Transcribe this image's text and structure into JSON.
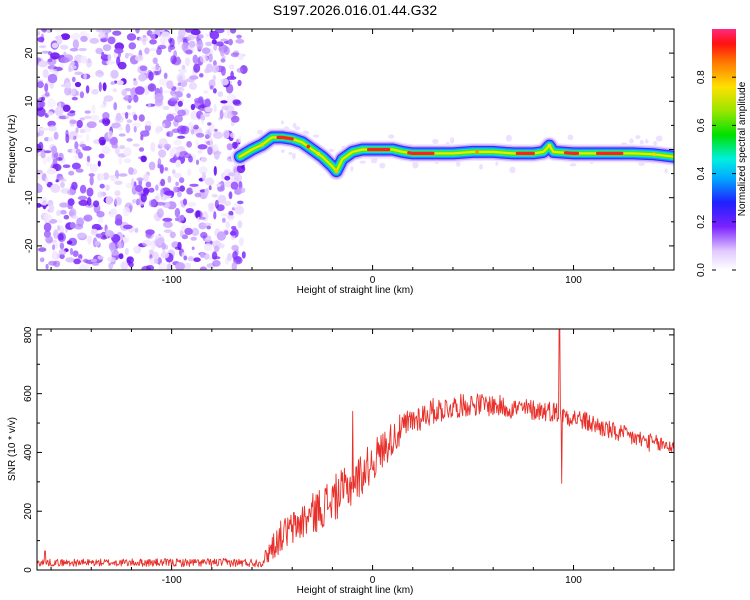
{
  "title": "S197.2026.016.01.44.G32",
  "chart_data": [
    {
      "type": "heatmap",
      "name": "spectrogram",
      "xlabel": "Height of straight line (km)",
      "ylabel": "Frequency (Hz)",
      "xlim": [
        -167,
        150
      ],
      "ylim": [
        -25,
        25
      ],
      "xticks": [
        -100,
        0,
        100
      ],
      "yticks": [
        -20,
        -10,
        0,
        10,
        20
      ],
      "noise_region_x": [
        -167,
        -64
      ],
      "ridge": {
        "x": [
          -66,
          -60,
          -55,
          -50,
          -45,
          -40,
          -35,
          -30,
          -25,
          -20,
          -18,
          -15,
          -10,
          -5,
          0,
          5,
          10,
          15,
          20,
          30,
          40,
          50,
          60,
          70,
          80,
          85,
          88,
          90,
          100,
          110,
          120,
          130,
          140,
          150
        ],
        "freq": [
          -1.5,
          0,
          1,
          2.5,
          2.5,
          2.2,
          1.5,
          0,
          -1.5,
          -3.5,
          -4.5,
          -2,
          -0.5,
          0,
          0,
          0,
          0,
          -0.5,
          -0.8,
          -0.8,
          -0.8,
          -0.5,
          -0.5,
          -0.8,
          -0.8,
          -0.5,
          0.8,
          -0.5,
          -0.8,
          -0.8,
          -0.8,
          -0.8,
          -1,
          -1.5
        ]
      },
      "colorbar": {
        "label": "Normalized spectral amplitude",
        "range": [
          0,
          1
        ],
        "ticks": [
          "0.0",
          "0.2",
          "0.4",
          "0.6",
          "0.8"
        ],
        "tick_values": [
          0,
          0.2,
          0.4,
          0.6,
          0.8
        ]
      }
    },
    {
      "type": "line",
      "name": "snr",
      "xlabel": "Height of straight line (km)",
      "ylabel": "SNR (10 * v/v)",
      "xlim": [
        -167,
        150
      ],
      "ylim": [
        0,
        820
      ],
      "xticks": [
        -100,
        0,
        100
      ],
      "yticks": [
        0,
        200,
        400,
        600,
        800
      ],
      "color": "#e8302a",
      "trend": {
        "x": [
          -167,
          -110,
          -75,
          -55,
          -50,
          -45,
          -40,
          -30,
          -20,
          -10,
          0,
          10,
          20,
          30,
          40,
          50,
          60,
          70,
          80,
          90,
          100,
          110,
          120,
          130,
          140,
          150
        ],
        "y": [
          25,
          25,
          25,
          25,
          80,
          120,
          140,
          190,
          240,
          290,
          370,
          450,
          510,
          540,
          555,
          565,
          560,
          550,
          545,
          540,
          520,
          495,
          470,
          450,
          430,
          420
        ]
      },
      "noise_amplitude": {
        "x": [
          -167,
          -55,
          -50,
          -20,
          0,
          20,
          40,
          150
        ],
        "y": [
          12,
          15,
          50,
          80,
          70,
          50,
          40,
          30
        ]
      },
      "spikes": [
        {
          "x": -163,
          "y": 65
        },
        {
          "x": -10,
          "y": 540
        },
        {
          "x": 93,
          "y": 820
        },
        {
          "x": 94,
          "y": 295
        }
      ]
    }
  ]
}
